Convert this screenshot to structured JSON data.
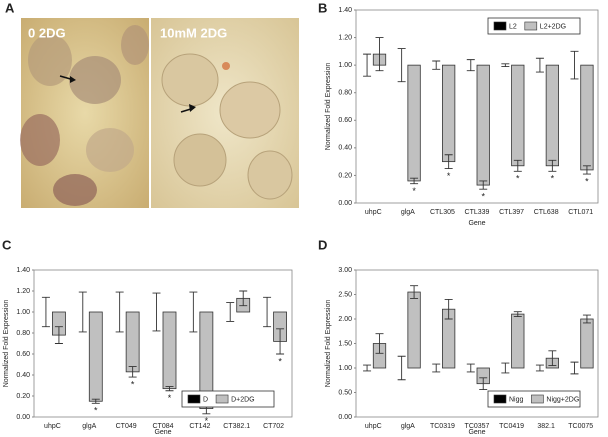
{
  "image_panel": {
    "panel": "A",
    "labels": [
      "0 2DG",
      "10mM 2DG"
    ]
  },
  "chart_data": [
    {
      "type": "floating-bar",
      "panel": "B",
      "xlabel": "Gene",
      "ylabel": "Normalized Fold Expression",
      "categories": [
        "uhpC",
        "glgA",
        "CTL305",
        "CTL339",
        "CTL397",
        "CTL638",
        "CTL071"
      ],
      "series": [
        {
          "name": "L2",
          "color": "#000000",
          "values": [
            1,
            1,
            1,
            1,
            1,
            1,
            1
          ],
          "errors": [
            0.08,
            0.12,
            0.03,
            0.04,
            0.01,
            0.05,
            0.1
          ],
          "markers": [
            null,
            null,
            null,
            null,
            null,
            null,
            null
          ]
        },
        {
          "name": "L2+2DG",
          "color": "#c0c0c0",
          "values": [
            1.08,
            0.16,
            0.3,
            0.13,
            0.27,
            0.27,
            0.24
          ],
          "errors": [
            0.12,
            0.02,
            0.05,
            0.03,
            0.04,
            0.04,
            0.03
          ],
          "markers": [
            null,
            "*",
            "*",
            "*",
            "*",
            "*",
            "*"
          ]
        }
      ],
      "ylim": [
        0,
        1.4
      ],
      "yticks": [
        {
          "value": 0,
          "label": "0.00"
        },
        {
          "value": 0.2,
          "label": "0.20"
        },
        {
          "value": 0.4,
          "label": "0.40"
        },
        {
          "value": 0.6,
          "label": "0.60"
        },
        {
          "value": 0.8,
          "label": "0.80"
        },
        {
          "value": 1,
          "label": "1.00"
        },
        {
          "value": 1.2,
          "label": "1.20"
        },
        {
          "value": 1.4,
          "label": "1.40"
        }
      ],
      "legend": "upper right",
      "grid": false
    },
    {
      "type": "floating-bar",
      "panel": "C",
      "xlabel": "Gene",
      "ylabel": "Normalized Fold Expression",
      "categories": [
        "uhpC",
        "glgA",
        "CT049",
        "CT084",
        "CT142",
        "CT382.1",
        "CT702"
      ],
      "series": [
        {
          "name": "D",
          "color": "#000000",
          "values": [
            1,
            1,
            1,
            1,
            1,
            1,
            1
          ],
          "errors": [
            0.14,
            0.19,
            0.19,
            0.18,
            0.19,
            0.09,
            0.14
          ],
          "markers": [
            null,
            null,
            null,
            null,
            null,
            null,
            null
          ]
        },
        {
          "name": "D+2DG",
          "color": "#c0c0c0",
          "values": [
            0.78,
            0.15,
            0.43,
            0.27,
            0.08,
            1.13,
            0.72
          ],
          "errors": [
            0.08,
            0.02,
            0.05,
            0.02,
            0.05,
            0.07,
            0.12
          ],
          "markers": [
            null,
            "*",
            "*",
            "*",
            "*",
            null,
            "*"
          ]
        }
      ],
      "ylim": [
        0,
        1.4
      ],
      "yticks": [
        {
          "value": 0,
          "label": "0.00"
        },
        {
          "value": 0.2,
          "label": "0.20"
        },
        {
          "value": 0.4,
          "label": "0.40"
        },
        {
          "value": 0.6,
          "label": "0.60"
        },
        {
          "value": 0.8,
          "label": "0.80"
        },
        {
          "value": 1,
          "label": "1.00"
        },
        {
          "value": 1.2,
          "label": "1.20"
        },
        {
          "value": 1.4,
          "label": "1.40"
        }
      ],
      "legend": "lower right",
      "grid": false
    },
    {
      "type": "floating-bar",
      "panel": "D",
      "xlabel": "Gene",
      "ylabel": "Normalized Fold Expression",
      "categories": [
        "uhpC",
        "glgA",
        "TC0319",
        "TC0357",
        "TC0419",
        "382.1",
        "TC0075"
      ],
      "series": [
        {
          "name": "Nigg",
          "color": "#000000",
          "values": [
            1,
            1,
            1,
            1,
            1,
            1,
            1
          ],
          "errors": [
            0.06,
            0.24,
            0.08,
            0.08,
            0.1,
            0.06,
            0.12
          ],
          "markers": [
            null,
            null,
            null,
            null,
            null,
            null,
            null
          ]
        },
        {
          "name": "Nigg+2DG",
          "color": "#c0c0c0",
          "values": [
            1.5,
            2.55,
            2.2,
            0.68,
            2.1,
            1.2,
            2.0
          ],
          "errors": [
            0.2,
            0.13,
            0.2,
            0.12,
            0.05,
            0.15,
            0.08
          ],
          "markers": [
            null,
            null,
            null,
            null,
            null,
            null,
            null
          ]
        }
      ],
      "ylim": [
        0,
        3
      ],
      "yticks": [
        {
          "value": 0,
          "label": "0.00"
        },
        {
          "value": 0.5,
          "label": "0.50"
        },
        {
          "value": 1,
          "label": "1.00"
        },
        {
          "value": 1.5,
          "label": "1.50"
        },
        {
          "value": 2,
          "label": "2.00"
        },
        {
          "value": 2.5,
          "label": "2.50"
        },
        {
          "value": 3,
          "label": "3.00"
        }
      ],
      "legend": "lower right",
      "grid": false
    }
  ]
}
